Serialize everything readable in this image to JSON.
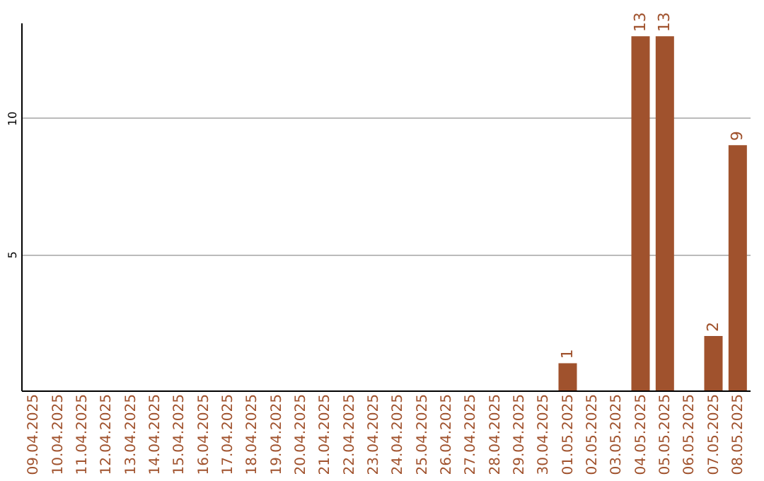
{
  "chart_data": {
    "type": "bar",
    "categories": [
      "09.04.2025",
      "10.04.2025",
      "11.04.2025",
      "12.04.2025",
      "13.04.2025",
      "14.04.2025",
      "15.04.2025",
      "16.04.2025",
      "17.04.2025",
      "18.04.2025",
      "19.04.2025",
      "20.04.2025",
      "21.04.2025",
      "22.04.2025",
      "23.04.2025",
      "24.04.2025",
      "25.04.2025",
      "26.04.2025",
      "27.04.2025",
      "28.04.2025",
      "29.04.2025",
      "30.04.2025",
      "01.05.2025",
      "02.05.2025",
      "03.05.2025",
      "04.05.2025",
      "05.05.2025",
      "06.05.2025",
      "07.05.2025",
      "08.05.2025"
    ],
    "values": [
      0,
      0,
      0,
      0,
      0,
      0,
      0,
      0,
      0,
      0,
      0,
      0,
      0,
      0,
      0,
      0,
      0,
      0,
      0,
      0,
      0,
      0,
      1,
      0,
      0,
      13,
      13,
      0,
      2,
      9
    ],
    "value_labels": [
      null,
      null,
      null,
      null,
      null,
      null,
      null,
      null,
      null,
      null,
      null,
      null,
      null,
      null,
      null,
      null,
      null,
      null,
      null,
      null,
      null,
      null,
      "1",
      null,
      null,
      "13",
      "13",
      null,
      "2",
      "9"
    ],
    "color": "#a0522d",
    "ylim": [
      0,
      13.5
    ],
    "yticks": [
      5,
      10
    ],
    "grid": "y"
  }
}
